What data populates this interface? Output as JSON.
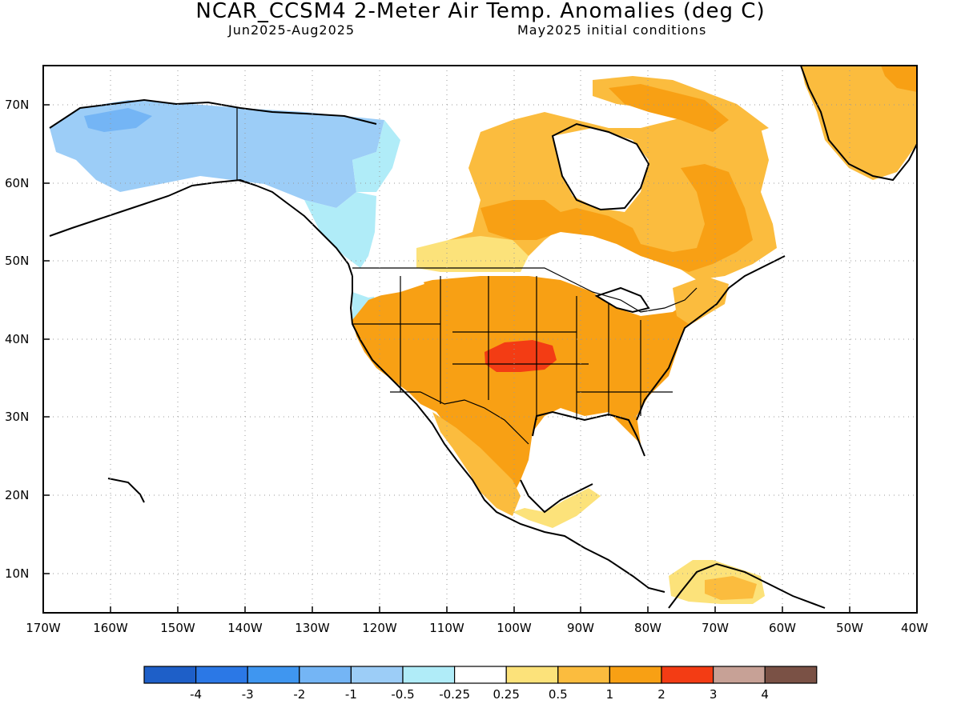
{
  "title": "NCAR_CCSM4 2-Meter Air Temp. Anomalies (deg C)",
  "subtitle_left": "Jun2025-Aug2025",
  "subtitle_right": "May2025 initial conditions",
  "map": {
    "lon_range": [
      -170,
      -40
    ],
    "lat_range": [
      5,
      75
    ],
    "lat_ticks": [
      "10N",
      "20N",
      "30N",
      "40N",
      "50N",
      "60N",
      "70N"
    ],
    "lon_ticks": [
      "170W",
      "160W",
      "150W",
      "140W",
      "130W",
      "120W",
      "110W",
      "100W",
      "90W",
      "80W",
      "70W",
      "60W",
      "50W",
      "40W"
    ],
    "grid": "dotted",
    "regions": [
      {
        "name": "Alaska",
        "anomaly_class": "-1 to -0.5"
      },
      {
        "name": "Western Canada / Yukon",
        "anomaly_class": "-0.5 to -0.25"
      },
      {
        "name": "Central US Plains",
        "anomaly_class": "2 to 3"
      },
      {
        "name": "Contiguous US",
        "anomaly_class": "1 to 2"
      },
      {
        "name": "Hudson Bay region",
        "anomaly_class": "1 to 2"
      },
      {
        "name": "Greenland",
        "anomaly_class": "0.5 to 1"
      },
      {
        "name": "Northern Mexico",
        "anomaly_class": "1 to 2"
      },
      {
        "name": "Northern South America",
        "anomaly_class": "0.5 to 1"
      }
    ]
  },
  "colorbar": {
    "colors": [
      "#1e5fc8",
      "#2b78e6",
      "#3f96f0",
      "#74b5f5",
      "#9ccdf7",
      "#b0ecf8",
      "#ffffff",
      "#fce27a",
      "#fbbc3e",
      "#f8a014",
      "#f33c14",
      "#c7a196",
      "#7a5145"
    ],
    "labels": [
      "-4",
      "-3",
      "-2",
      "-1",
      "-0.5",
      "-0.25",
      "0.25",
      "0.5",
      "1",
      "2",
      "3",
      "4"
    ]
  }
}
